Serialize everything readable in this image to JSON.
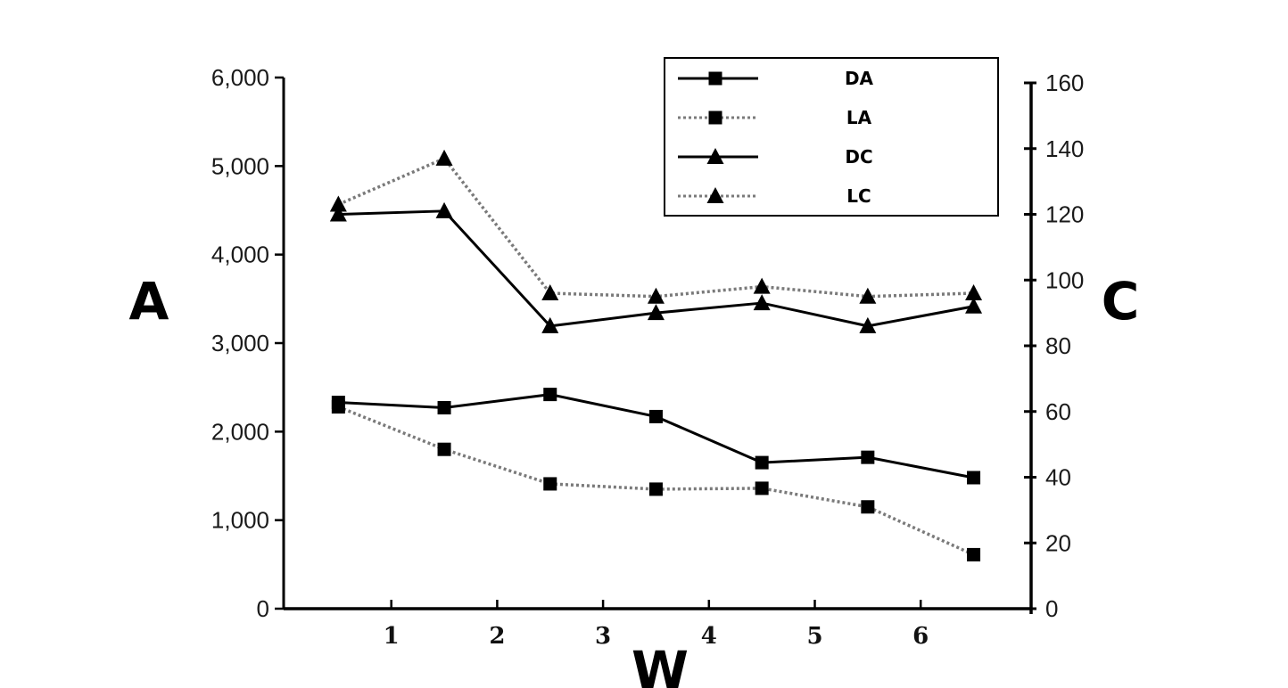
{
  "chart_data": {
    "type": "line",
    "x": [
      0.5,
      1.5,
      2.5,
      3.5,
      4.5,
      5.5,
      6.5
    ],
    "xticks": [
      "1",
      "2",
      "3",
      "4",
      "5",
      "6"
    ],
    "xlabel": "W",
    "ylabel_left": "A",
    "ylabel_right": "C",
    "ylim_left": [
      0,
      6000
    ],
    "ylim_right": [
      0,
      160
    ],
    "yticks_left": [
      "0",
      "1,000",
      "2,000",
      "3,000",
      "4,000",
      "5,000",
      "6,000"
    ],
    "yticks_right": [
      "0",
      "20",
      "40",
      "60",
      "80",
      "100",
      "120",
      "140",
      "160"
    ],
    "grid": false,
    "legend_position": "top-right",
    "series": [
      {
        "name": "DA",
        "axis": "left",
        "line": "solid",
        "marker": "square",
        "values": [
          2330,
          2270,
          2420,
          2170,
          1650,
          1710,
          1480
        ]
      },
      {
        "name": "LA",
        "axis": "left",
        "line": "dotted",
        "marker": "square",
        "values": [
          2280,
          1800,
          1410,
          1350,
          1360,
          1150,
          610
        ]
      },
      {
        "name": "DC",
        "axis": "right",
        "line": "solid",
        "marker": "triangle",
        "values": [
          120,
          121,
          86,
          90,
          93,
          86,
          92
        ]
      },
      {
        "name": "LC",
        "axis": "right",
        "line": "dotted",
        "marker": "triangle",
        "values": [
          123,
          137,
          96,
          95,
          98,
          95,
          96
        ]
      }
    ]
  }
}
